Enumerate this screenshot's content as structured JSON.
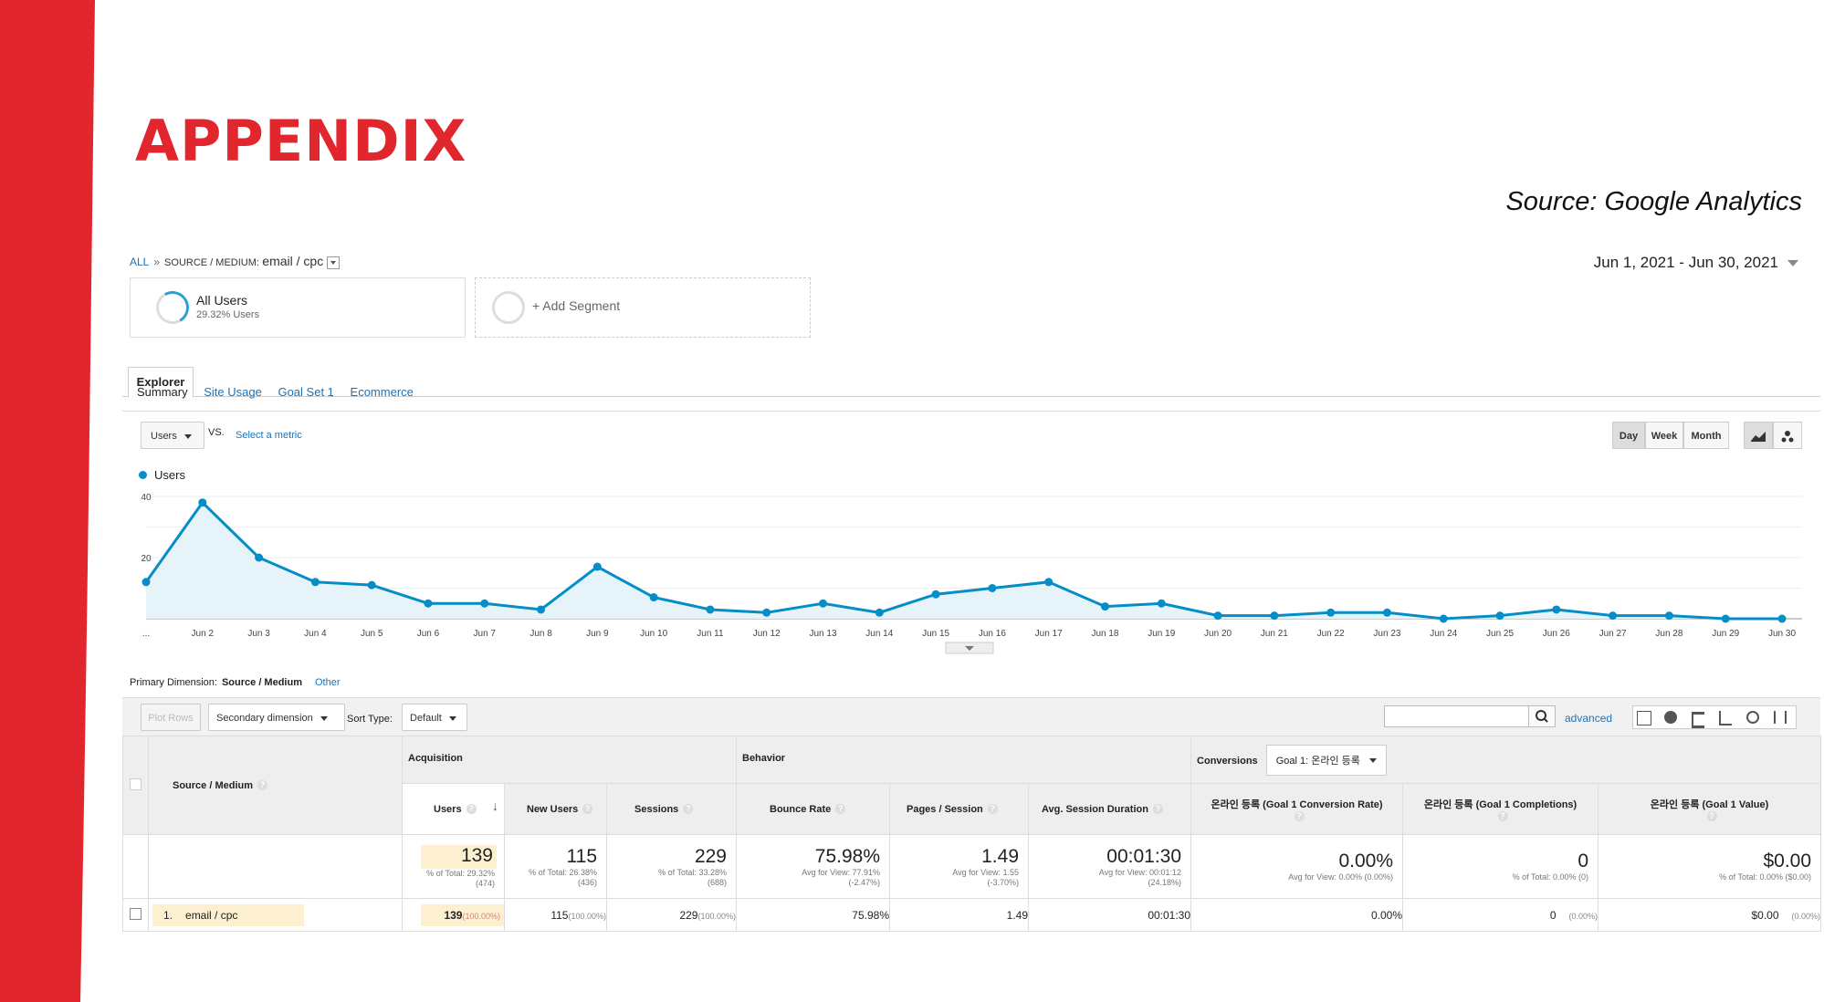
{
  "slide": {
    "title": "APPENDIX",
    "source": "Source: Google Analytics",
    "accent_color": "#e1262d"
  },
  "breadcrumb": {
    "all": "ALL",
    "separator": "»",
    "dim_label": "SOURCE / MEDIUM:",
    "dim_value": "email / cpc"
  },
  "date_range": "Jun 1, 2021 - Jun 30, 2021",
  "segments": [
    {
      "name": "All Users",
      "sub": "29.32% Users"
    },
    {
      "name": "+ Add Segment"
    }
  ],
  "tabs": {
    "explorer": "Explorer"
  },
  "subtabs": [
    "Summary",
    "Site Usage",
    "Goal Set 1",
    "Ecommerce"
  ],
  "metric_controls": {
    "metric": "Users",
    "vs": "VS.",
    "select_metric": "Select a metric",
    "time_buttons": [
      "Day",
      "Week",
      "Month"
    ],
    "active_time": "Day"
  },
  "chart_data": {
    "type": "area",
    "series": [
      {
        "name": "Users",
        "values": [
          12,
          38,
          20,
          12,
          11,
          5,
          5,
          3,
          17,
          7,
          3,
          2,
          5,
          2,
          8,
          10,
          12,
          4,
          5,
          1,
          1,
          2,
          2,
          0,
          1,
          3,
          1,
          1,
          0,
          0
        ]
      }
    ],
    "x": [
      "...",
      "Jun 2",
      "Jun 3",
      "Jun 4",
      "Jun 5",
      "Jun 6",
      "Jun 7",
      "Jun 8",
      "Jun 9",
      "Jun 10",
      "Jun 11",
      "Jun 12",
      "Jun 13",
      "Jun 14",
      "Jun 15",
      "Jun 16",
      "Jun 17",
      "Jun 18",
      "Jun 19",
      "Jun 20",
      "Jun 21",
      "Jun 22",
      "Jun 23",
      "Jun 24",
      "Jun 25",
      "Jun 26",
      "Jun 27",
      "Jun 28",
      "Jun 29",
      "Jun 30"
    ],
    "y_ticks": [
      "40",
      "20"
    ],
    "ylim": [
      0,
      40
    ],
    "color": "#058dc7",
    "fill": "#e6f4fa",
    "grid": true,
    "legend": "top-left"
  },
  "primary_dimension": {
    "label": "Primary Dimension:",
    "value": "Source / Medium",
    "other": "Other"
  },
  "toolbar": {
    "plot_rows": "Plot Rows",
    "secondary": "Secondary dimension",
    "sort_label": "Sort Type:",
    "sort_value": "Default",
    "advanced": "advanced"
  },
  "table": {
    "dimension_header": "Source / Medium",
    "groups": {
      "acquisition": "Acquisition",
      "behavior": "Behavior",
      "conversions": "Conversions",
      "goal_select": "Goal 1: 온라인 등록"
    },
    "columns": [
      "Users",
      "New Users",
      "Sessions",
      "Bounce Rate",
      "Pages / Session",
      "Avg. Session Duration",
      "온라인 등록 (Goal 1 Conversion Rate)",
      "온라인 등록 (Goal 1 Completions)",
      "온라인 등록 (Goal 1 Value)"
    ],
    "totals": [
      {
        "value": "139",
        "sub1": "% of Total: 29.32%",
        "sub2": "(474)"
      },
      {
        "value": "115",
        "sub1": "% of Total: 26.38%",
        "sub2": "(436)"
      },
      {
        "value": "229",
        "sub1": "% of Total: 33.28%",
        "sub2": "(688)"
      },
      {
        "value": "75.98%",
        "sub1": "Avg for View: 77.91%",
        "sub2": "(-2.47%)"
      },
      {
        "value": "1.49",
        "sub1": "Avg for View: 1.55",
        "sub2": "(-3.70%)"
      },
      {
        "value": "00:01:30",
        "sub1": "Avg for View: 00:01:12",
        "sub2": "(24.18%)"
      },
      {
        "value": "0.00%",
        "sub1": "Avg for View: 0.00% (0.00%)",
        "sub2": ""
      },
      {
        "value": "0",
        "sub1": "% of Total: 0.00% (0)",
        "sub2": ""
      },
      {
        "value": "$0.00",
        "sub1": "% of Total: 0.00% ($0.00)",
        "sub2": ""
      }
    ],
    "row": {
      "index": "1.",
      "dimension": "email / cpc",
      "cells": [
        {
          "value": "139",
          "pct": "(100.00%)"
        },
        {
          "value": "115",
          "pct": "(100.00%)"
        },
        {
          "value": "229",
          "pct": "(100.00%)"
        },
        {
          "value": "75.98%",
          "pct": ""
        },
        {
          "value": "1.49",
          "pct": ""
        },
        {
          "value": "00:01:30",
          "pct": ""
        },
        {
          "value": "0.00%",
          "pct": ""
        },
        {
          "value": "0",
          "pct": "(0.00%)"
        },
        {
          "value": "$0.00",
          "pct": "(0.00%)"
        }
      ]
    }
  }
}
